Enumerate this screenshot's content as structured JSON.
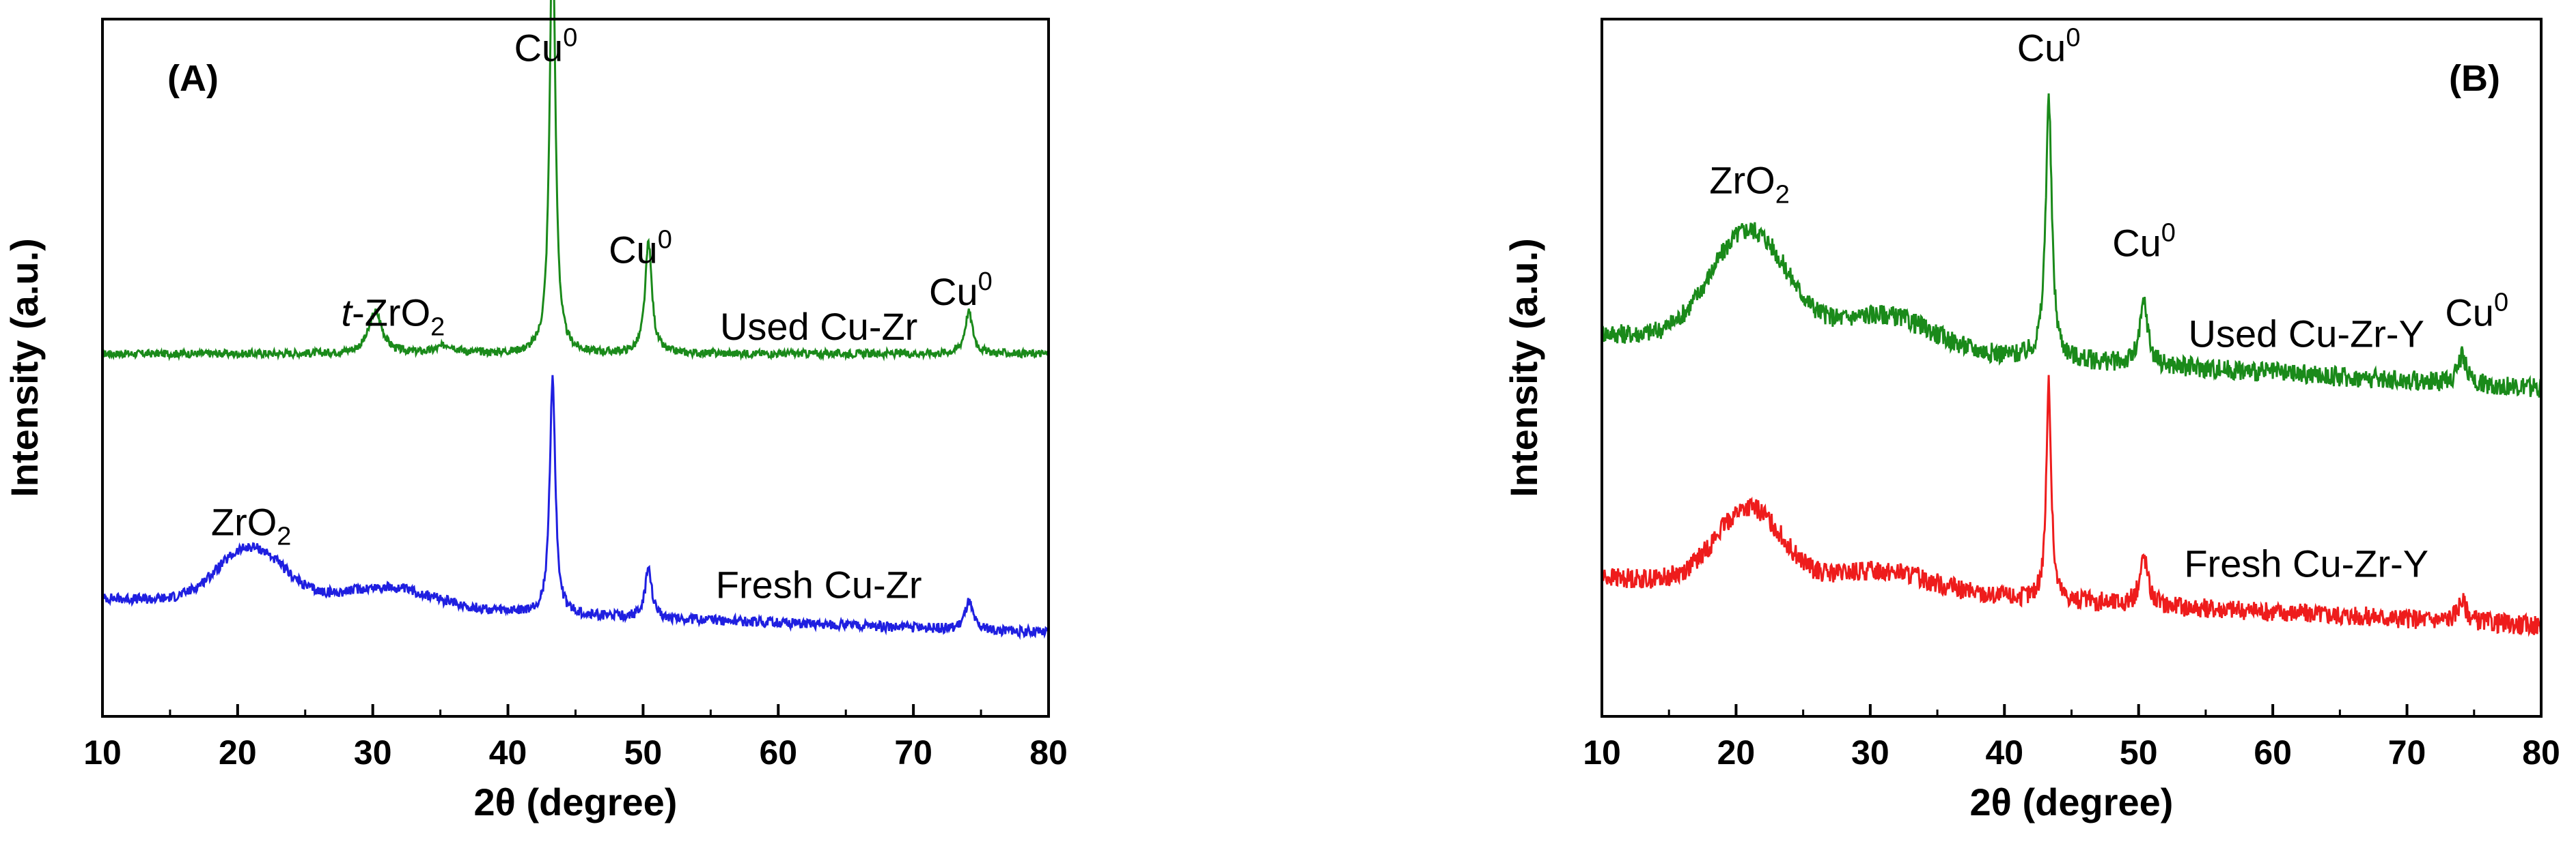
{
  "chart_data": [
    {
      "type": "line",
      "panel_label": "(A)",
      "xlabel": "2θ (degree)",
      "ylabel": "Intensity (a.u.)",
      "xlim": [
        10,
        80
      ],
      "ylim": [
        0,
        100
      ],
      "xticks": [
        10,
        20,
        30,
        40,
        50,
        60,
        70,
        80
      ],
      "series": [
        {
          "name": "Used Cu-Zr",
          "color": "#1a8a1a",
          "baseline": 52,
          "baseline_end": 52,
          "noise": 0.35,
          "peaks": [
            {
              "x": 30.2,
              "h": 6,
              "w": 0.6
            },
            {
              "x": 35.5,
              "h": 1.2,
              "w": 0.8
            },
            {
              "x": 43.3,
              "h": 63,
              "w": 0.25
            },
            {
              "x": 50.4,
              "h": 16,
              "w": 0.3
            },
            {
              "x": 74.1,
              "h": 6,
              "w": 0.35
            }
          ],
          "humps": []
        },
        {
          "name": "Fresh Cu-Zr",
          "color": "#1f1fe0",
          "baseline": 17,
          "baseline_end": 12,
          "noise": 0.45,
          "peaks": [
            {
              "x": 43.3,
              "h": 34,
              "w": 0.25
            },
            {
              "x": 50.4,
              "h": 7,
              "w": 0.3
            },
            {
              "x": 74.1,
              "h": 4,
              "w": 0.35
            }
          ],
          "humps": [
            {
              "x": 21,
              "h": 8,
              "w": 3.5
            },
            {
              "x": 31,
              "h": 3,
              "w": 5
            }
          ]
        }
      ],
      "annotations": [
        {
          "base": "Cu",
          "sup": "0",
          "sub": "",
          "italic_prefix": "",
          "x": 42.8,
          "y": 94
        },
        {
          "base": "Cu",
          "sup": "0",
          "sub": "",
          "italic_prefix": "",
          "x": 49.8,
          "y": 65
        },
        {
          "base": "Cu",
          "sup": "0",
          "sub": "",
          "italic_prefix": "",
          "x": 73.5,
          "y": 59
        },
        {
          "base": "-ZrO",
          "sup": "",
          "sub": "2",
          "italic_prefix": "t",
          "x": 31.5,
          "y": 56
        },
        {
          "base": "ZrO",
          "sup": "",
          "sub": "2",
          "italic_prefix": "",
          "x": 21,
          "y": 26
        },
        {
          "base": "Used Cu-Zr",
          "sup": "",
          "sub": "",
          "italic_prefix": "",
          "x": 63,
          "y": 54
        },
        {
          "base": "Fresh Cu-Zr",
          "sup": "",
          "sub": "",
          "italic_prefix": "",
          "x": 63,
          "y": 17
        }
      ]
    },
    {
      "type": "line",
      "panel_label": "(B)",
      "xlabel": "2θ (degree)",
      "ylabel": "Intensity (a.u.)",
      "xlim": [
        10,
        80
      ],
      "ylim": [
        0,
        100
      ],
      "xticks": [
        10,
        20,
        30,
        40,
        50,
        60,
        70,
        80
      ],
      "series": [
        {
          "name": "Used Cu-Zr-Y",
          "color": "#1a8a1a",
          "baseline": 55,
          "baseline_end": 47,
          "noise": 0.9,
          "peaks": [
            {
              "x": 43.3,
              "h": 37,
              "w": 0.28
            },
            {
              "x": 50.4,
              "h": 9,
              "w": 0.35
            },
            {
              "x": 74.1,
              "h": 4,
              "w": 0.4
            }
          ],
          "humps": [
            {
              "x": 21,
              "h": 16,
              "w": 4
            },
            {
              "x": 31,
              "h": 5,
              "w": 5
            }
          ]
        },
        {
          "name": "Fresh Cu-Zr-Y",
          "color": "#ee1c1c",
          "baseline": 20,
          "baseline_end": 13,
          "noise": 0.9,
          "peaks": [
            {
              "x": 43.3,
              "h": 31,
              "w": 0.22
            },
            {
              "x": 50.4,
              "h": 7,
              "w": 0.35
            },
            {
              "x": 74.1,
              "h": 3,
              "w": 0.4
            }
          ],
          "humps": [
            {
              "x": 21,
              "h": 11,
              "w": 3.5
            },
            {
              "x": 31,
              "h": 3,
              "w": 5
            }
          ]
        }
      ],
      "annotations": [
        {
          "base": "Cu",
          "sup": "0",
          "sub": "",
          "italic_prefix": "",
          "x": 43.3,
          "y": 94
        },
        {
          "base": "ZrO",
          "sup": "",
          "sub": "2",
          "italic_prefix": "",
          "x": 21,
          "y": 75
        },
        {
          "base": "Cu",
          "sup": "0",
          "sub": "",
          "italic_prefix": "",
          "x": 50.4,
          "y": 66
        },
        {
          "base": "Cu",
          "sup": "0",
          "sub": "",
          "italic_prefix": "",
          "x": 75.2,
          "y": 56
        },
        {
          "base": "Used Cu-Zr-Y",
          "sup": "",
          "sub": "",
          "italic_prefix": "",
          "x": 62.5,
          "y": 53
        },
        {
          "base": "Fresh Cu-Zr-Y",
          "sup": "",
          "sub": "",
          "italic_prefix": "",
          "x": 62.5,
          "y": 20
        }
      ]
    }
  ]
}
